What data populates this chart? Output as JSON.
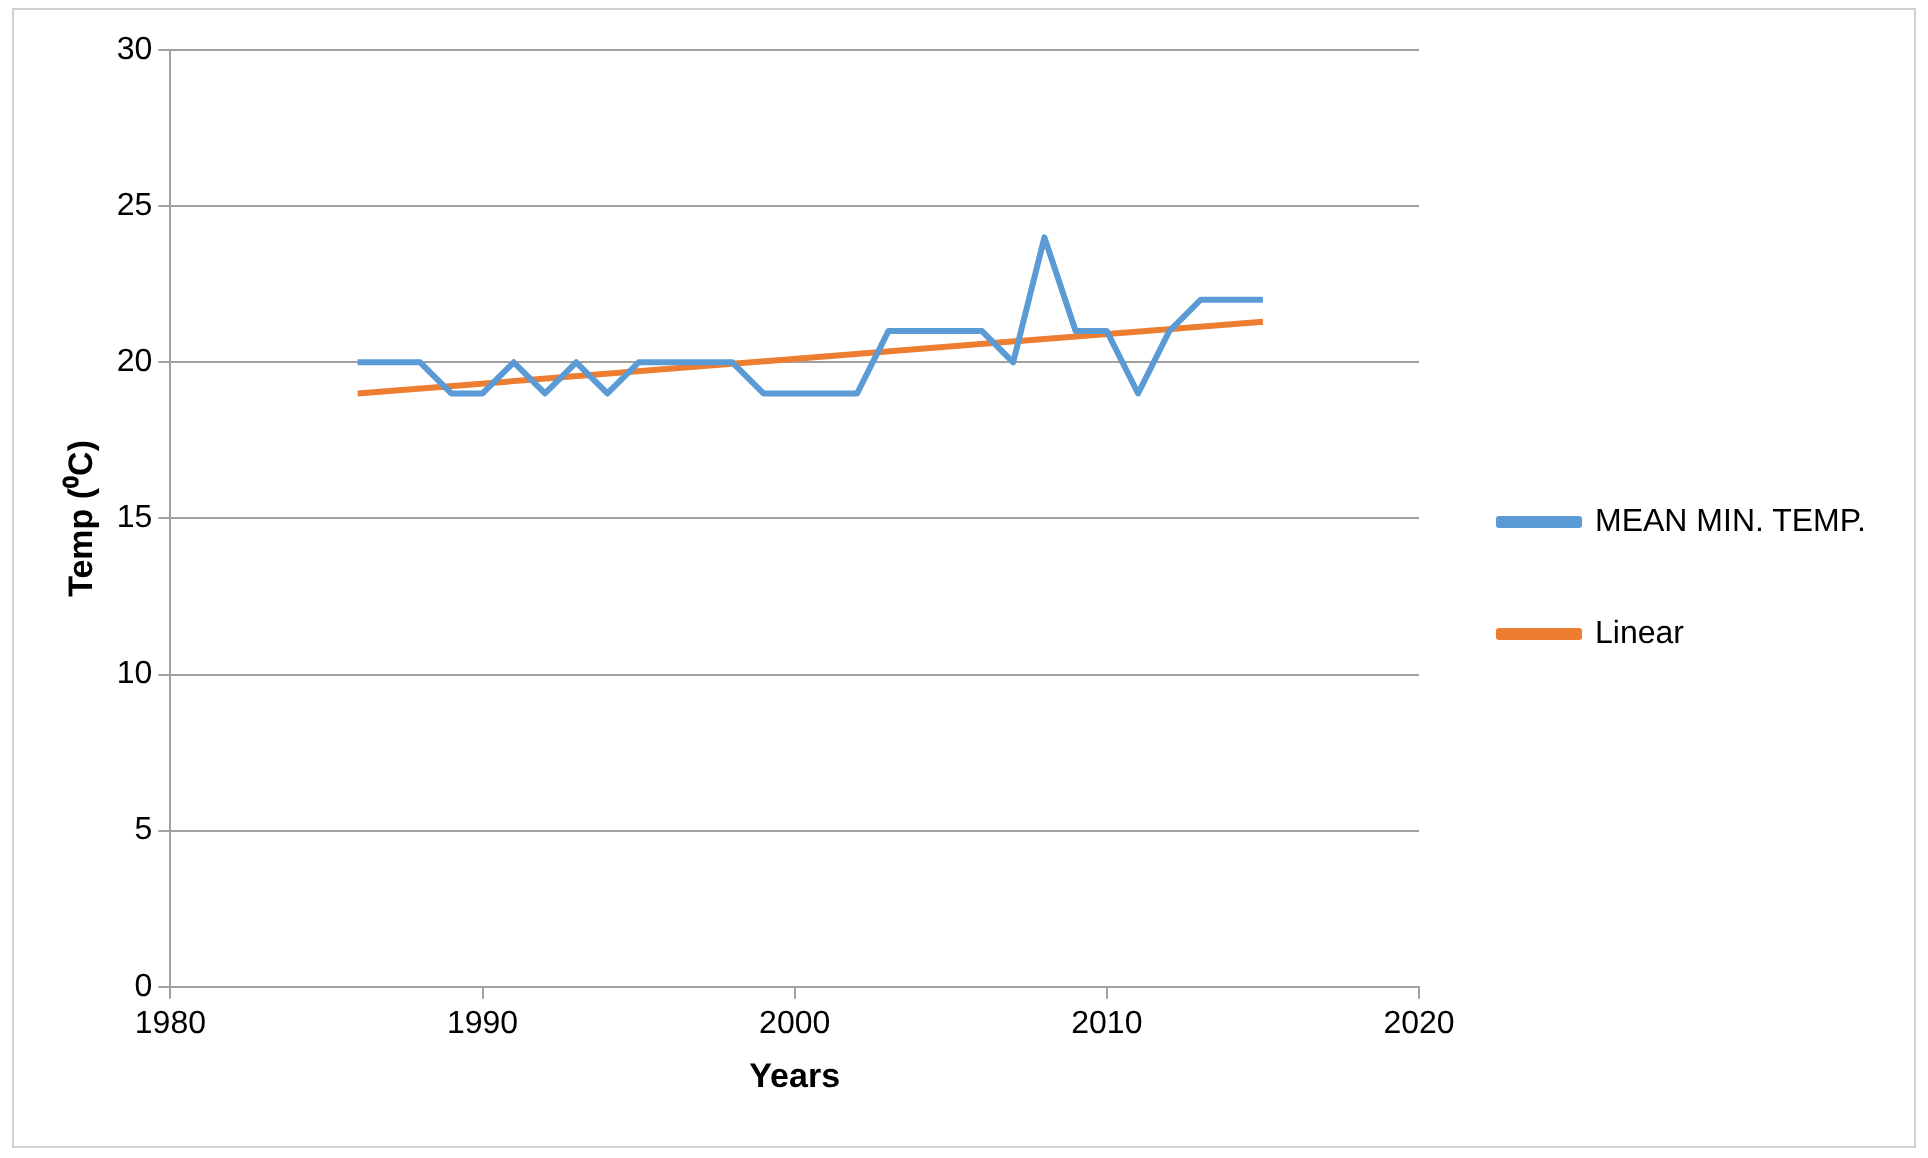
{
  "chart_data": {
    "type": "line",
    "xlabel": "Years",
    "ylabel": "Temp (⁰C)",
    "x": [
      1986,
      1987,
      1988,
      1989,
      1990,
      1991,
      1992,
      1993,
      1994,
      1995,
      1996,
      1997,
      1998,
      1999,
      2000,
      2001,
      2002,
      2003,
      2004,
      2005,
      2006,
      2007,
      2008,
      2009,
      2010,
      2011,
      2012,
      2013,
      2014,
      2015
    ],
    "series": [
      {
        "name": "MEAN MIN. TEMP.",
        "color": "#5b9bd5",
        "values": [
          20,
          20,
          20,
          19,
          19,
          20,
          19,
          20,
          19,
          20,
          20,
          20,
          20,
          19,
          19,
          19,
          19,
          21,
          21,
          21,
          21,
          20,
          24,
          21,
          21,
          19,
          21,
          22,
          22,
          22
        ]
      },
      {
        "name": "Linear",
        "type": "line",
        "color": "#ed7d31",
        "x": [
          1986,
          2015
        ],
        "values": [
          19.0,
          21.3
        ]
      }
    ],
    "xlim": [
      1980,
      2020
    ],
    "xticks": [
      1980,
      1990,
      2000,
      2010,
      2020
    ],
    "ylim": [
      0,
      30
    ],
    "yticks": [
      0,
      5,
      10,
      15,
      20,
      25,
      30
    ],
    "grid": "y",
    "legend": "right",
    "marker": "none"
  }
}
